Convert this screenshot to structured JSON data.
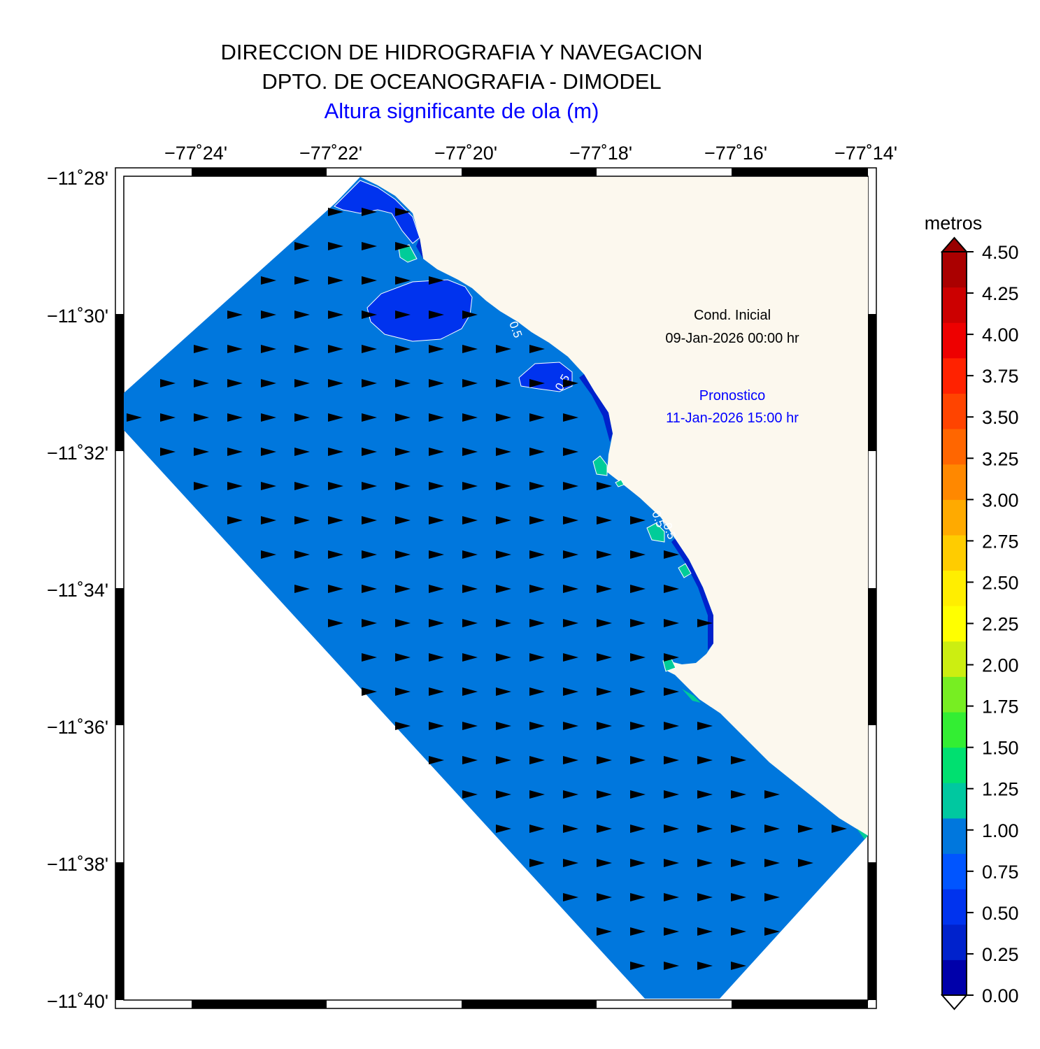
{
  "header": {
    "line1": "DIRECCION DE HIDROGRAFIA Y NAVEGACION",
    "line2": "DPTO. DE OCEANOGRAFIA - DIMODEL",
    "subtitle": "Altura significante de ola (m)",
    "subtitle_color": "#0000ff"
  },
  "map": {
    "lon_ticks": [
      "−77˚24'",
      "−77˚22'",
      "−77˚20'",
      "−77˚18'",
      "−77˚16'",
      "−77˚14'"
    ],
    "lat_ticks": [
      "−11˚28'",
      "−11˚30'",
      "−11˚32'",
      "−11˚34'",
      "−11˚36'",
      "−11˚38'",
      "−11˚40'"
    ],
    "land_color": "#fcf8ee",
    "sea_color": "#0077dd",
    "low_wave_color": "#0033ee",
    "coast_band_color": "#0022cc",
    "high_patch_color": "#00cc99",
    "contour_labels": [
      "0.5",
      "0.5",
      "0.5",
      "0.5"
    ],
    "arrow_direction": "east"
  },
  "annotations": {
    "cond_label": "Cond. Inicial",
    "cond_time": "09-Jan-2026 00:00 hr",
    "cond_color": "#000000",
    "fcst_label": "Pronostico",
    "fcst_time": "11-Jan-2026 15:00 hr",
    "fcst_color": "#0000ff"
  },
  "colorbar": {
    "title": "metros",
    "labels": [
      "4.50",
      "4.25",
      "4.00",
      "3.75",
      "3.50",
      "3.25",
      "3.00",
      "2.75",
      "2.50",
      "2.25",
      "2.00",
      "1.75",
      "1.50",
      "1.25",
      "1.00",
      "0.75",
      "0.50",
      "0.25",
      "0.00"
    ],
    "colors": [
      "#0000aa",
      "#0022cc",
      "#0033ee",
      "#0055ff",
      "#0077dd",
      "#00c8a0",
      "#00e070",
      "#33ee33",
      "#77ee22",
      "#ccee11",
      "#ffff00",
      "#ffee00",
      "#ffcc00",
      "#ffaa00",
      "#ff8800",
      "#ff6600",
      "#ff4400",
      "#ff2200",
      "#ee0000",
      "#cc0000",
      "#aa0000"
    ],
    "over_color": "#990000",
    "under_color": "#ffffff"
  }
}
